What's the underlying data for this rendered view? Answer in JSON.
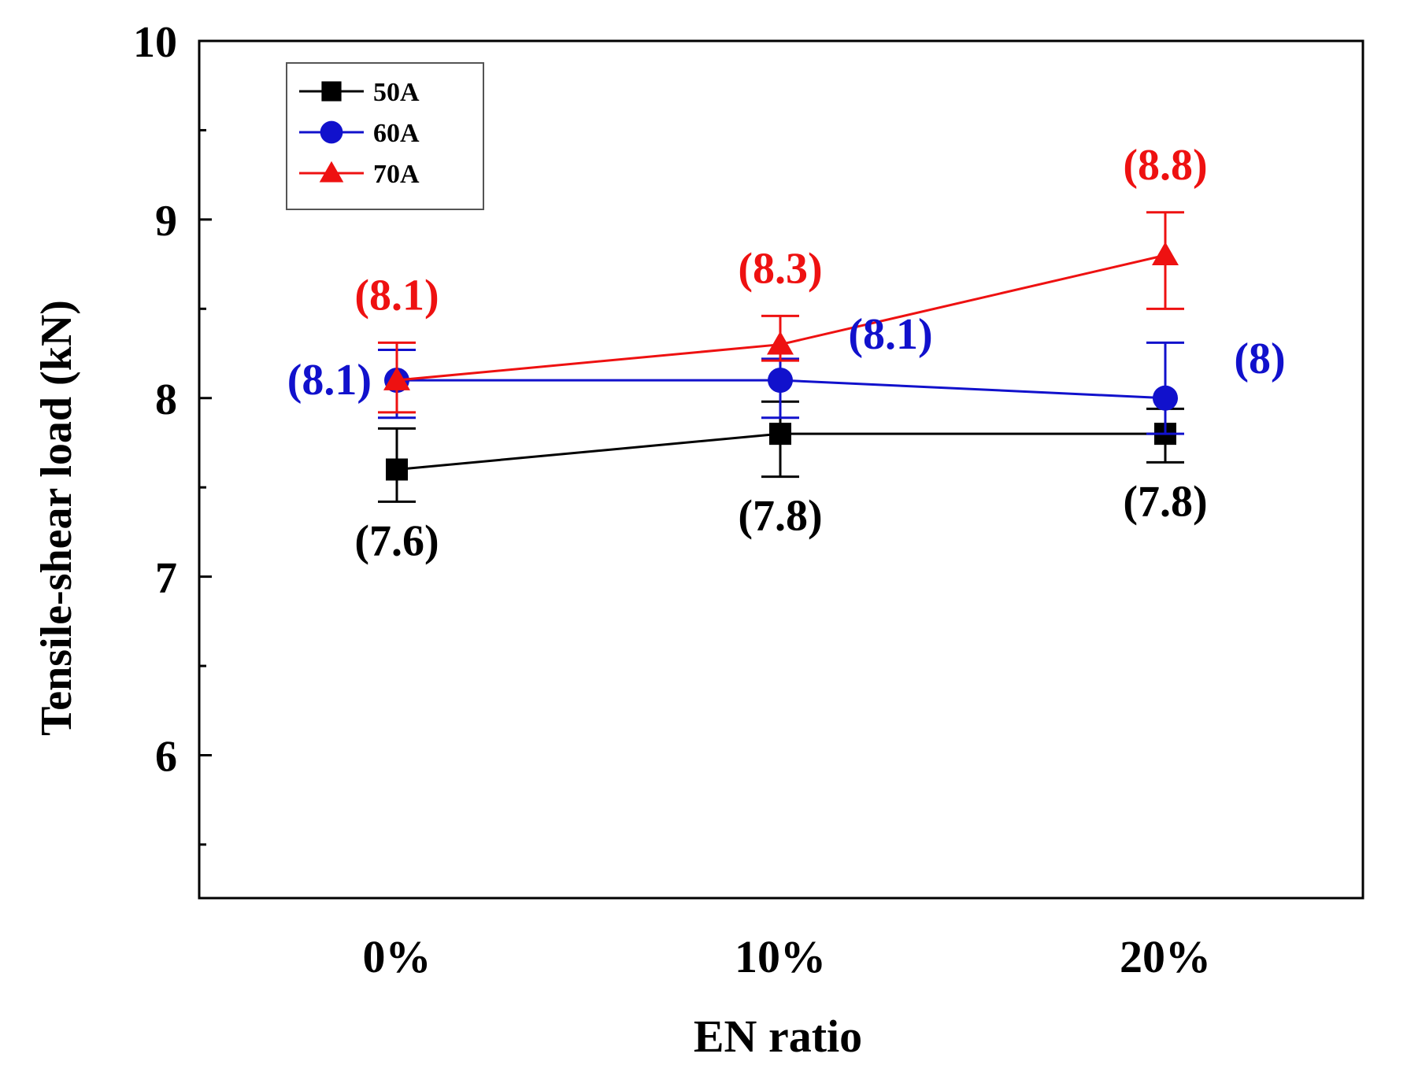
{
  "chart_data": {
    "type": "line",
    "title": "",
    "xlabel": "EN ratio",
    "ylabel": "Tensile-shear load (kN)",
    "categories": [
      "0%",
      "10%",
      "20%"
    ],
    "ylim": [
      5.2,
      10
    ],
    "yticks_major": [
      6,
      7,
      8,
      9,
      10
    ],
    "yticks_minor": [
      5.5,
      6.5,
      7.5,
      8.5,
      9.5
    ],
    "legend_position": "top-left",
    "series": [
      {
        "name": "50A",
        "color": "#000000",
        "marker": "square",
        "values": [
          7.6,
          7.8,
          7.8
        ],
        "err_low": [
          7.42,
          7.56,
          7.64
        ],
        "err_high": [
          7.83,
          7.98,
          7.94
        ],
        "labels": [
          "(7.6)",
          "(7.8)",
          "(7.8)"
        ]
      },
      {
        "name": "60A",
        "color": "#1111cc",
        "marker": "circle",
        "values": [
          8.1,
          8.1,
          8.0
        ],
        "err_low": [
          7.89,
          7.89,
          7.8
        ],
        "err_high": [
          8.27,
          8.22,
          8.31
        ],
        "labels": [
          "(8.1)",
          "(8.1)",
          "(8)"
        ]
      },
      {
        "name": "70A",
        "color": "#ee1111",
        "marker": "triangle",
        "values": [
          8.1,
          8.3,
          8.8
        ],
        "err_low": [
          7.92,
          8.21,
          8.5
        ],
        "err_high": [
          8.31,
          8.46,
          9.04
        ],
        "labels": [
          "(8.1)",
          "(8.3)",
          "(8.8)"
        ]
      }
    ]
  }
}
